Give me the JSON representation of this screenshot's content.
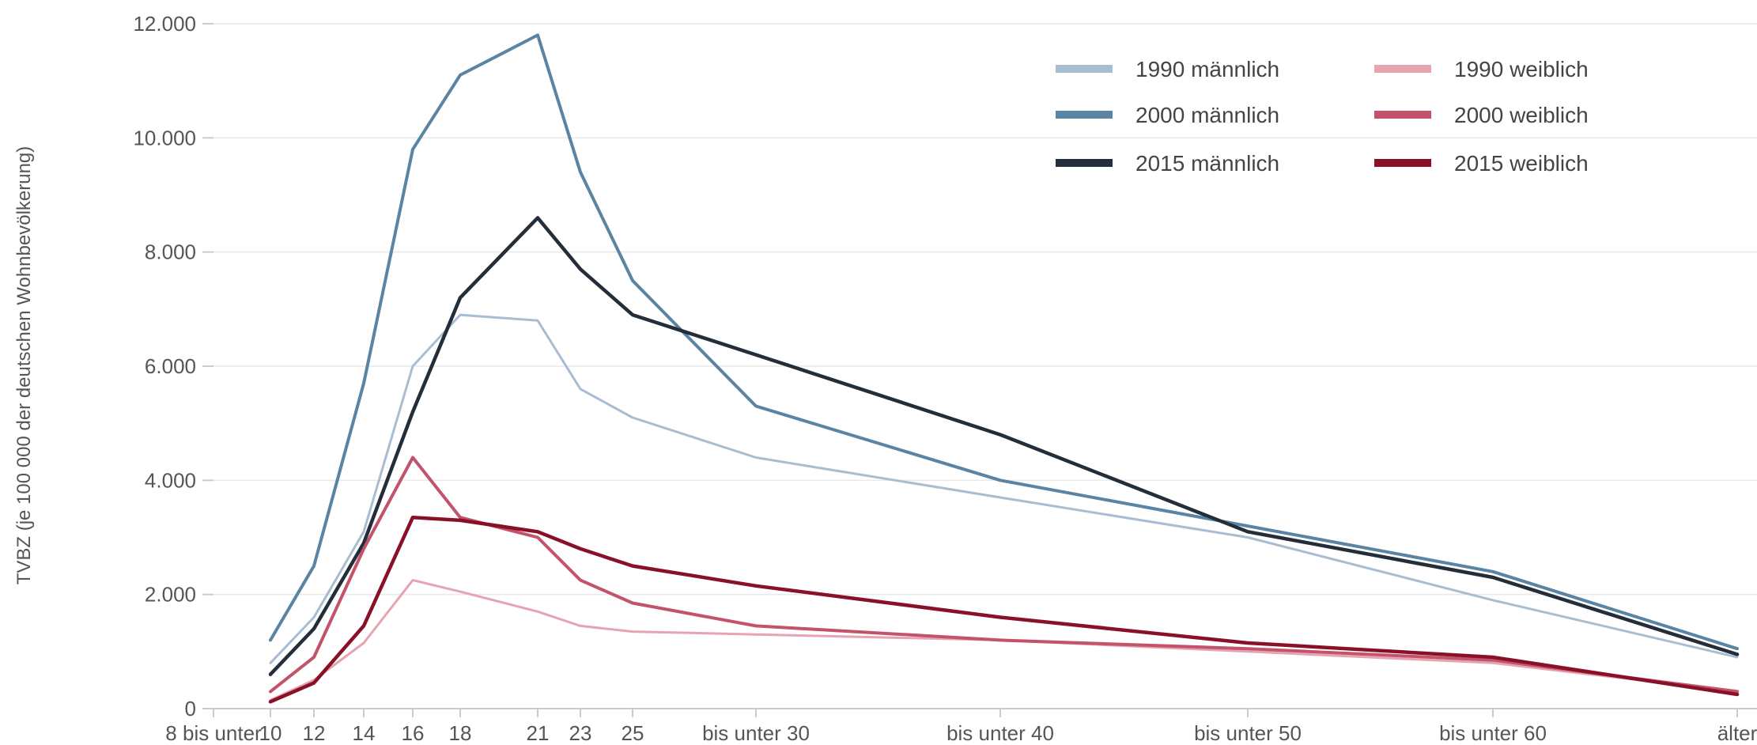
{
  "chart_data": {
    "type": "line",
    "ylabel": "TVBZ (je 100 000 der deutschen Wohnbevölkerung)",
    "xlabel": "",
    "ylim": [
      0,
      12000
    ],
    "yticks": [
      0,
      2000,
      4000,
      6000,
      8000,
      10000,
      12000
    ],
    "ytick_labels": [
      "0",
      "2.000",
      "4.000",
      "6.000",
      "8.000",
      "10.000",
      "12.000"
    ],
    "x": [
      10,
      12,
      14,
      16,
      18,
      21,
      23,
      25,
      30,
      40,
      50,
      60,
      70
    ],
    "xlim": [
      8,
      70
    ],
    "xticks": [
      {
        "x": 8,
        "label": "8 bis unter"
      },
      {
        "x": 10,
        "label": "10"
      },
      {
        "x": 12,
        "label": "12"
      },
      {
        "x": 14,
        "label": "14"
      },
      {
        "x": 16,
        "label": "16"
      },
      {
        "x": 18,
        "label": "18"
      },
      {
        "x": 21,
        "label": "21"
      },
      {
        "x": 23,
        "label": "23"
      },
      {
        "x": 25,
        "label": "25"
      },
      {
        "x": 30,
        "label": "bis unter 30"
      },
      {
        "x": 40,
        "label": "bis unter 40"
      },
      {
        "x": 50,
        "label": "bis unter 50"
      },
      {
        "x": 60,
        "label": "bis unter 60"
      },
      {
        "x": 70,
        "label": "älter"
      }
    ],
    "grid": true,
    "legend_position": "top-right",
    "series": [
      {
        "name": "1990 männlich",
        "color": "#a9bdd2",
        "values": [
          800,
          1600,
          3100,
          6000,
          6900,
          6800,
          5600,
          5100,
          4400,
          3700,
          3000,
          1900,
          900
        ]
      },
      {
        "name": "2000 männlich",
        "color": "#5a84a3",
        "values": [
          1200,
          2500,
          5700,
          9800,
          11100,
          11800,
          9400,
          7500,
          5300,
          4000,
          3200,
          2400,
          1050
        ]
      },
      {
        "name": "2015 männlich",
        "color": "#232e3a",
        "values": [
          600,
          1400,
          2900,
          5200,
          7200,
          8600,
          7700,
          6900,
          6200,
          4800,
          3100,
          2300,
          950
        ]
      },
      {
        "name": "1990 weiblich",
        "color": "#e6a3b0",
        "values": [
          150,
          500,
          1150,
          2250,
          2050,
          1700,
          1450,
          1350,
          1300,
          1200,
          1000,
          800,
          300
        ]
      },
      {
        "name": "2000 weiblich",
        "color": "#c2536a",
        "values": [
          300,
          900,
          2800,
          4400,
          3350,
          3000,
          2250,
          1850,
          1450,
          1200,
          1050,
          850,
          300
        ]
      },
      {
        "name": "2015 weiblich",
        "color": "#8a1028",
        "values": [
          120,
          450,
          1450,
          3350,
          3300,
          3100,
          2800,
          2500,
          2150,
          1600,
          1150,
          900,
          250
        ]
      }
    ]
  }
}
